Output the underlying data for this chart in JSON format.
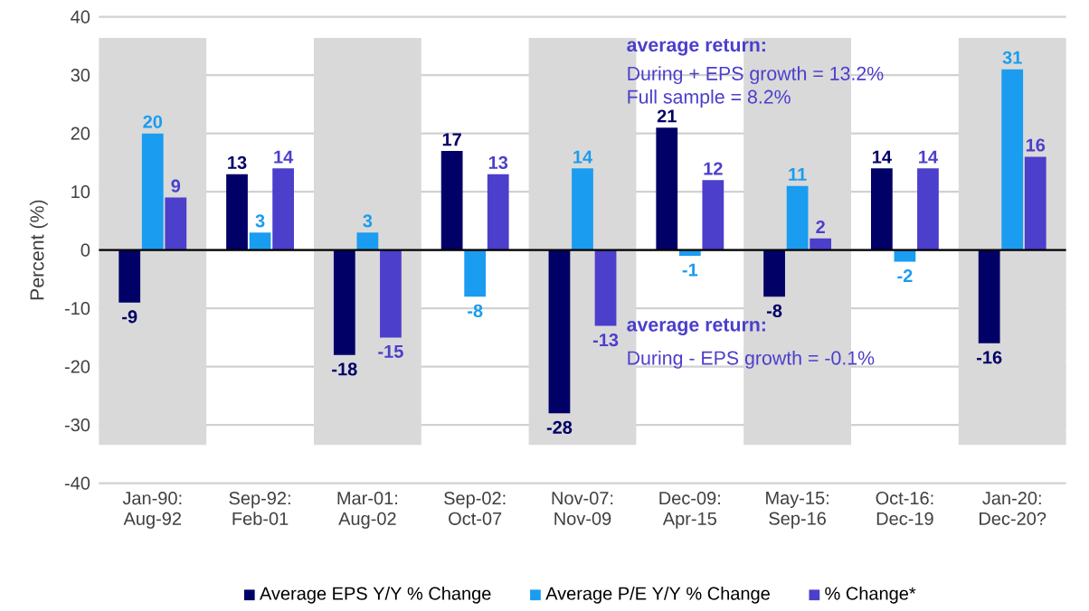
{
  "chart_data": {
    "type": "bar",
    "ylabel": "Percent (%)",
    "categories": [
      "Jan-90: Aug-92",
      "Sep-92: Feb-01",
      "Mar-01: Aug-02",
      "Sep-02: Oct-07",
      "Nov-07: Nov-09",
      "Dec-09: Apr-15",
      "May-15: Sep-16",
      "Oct-16: Dec-19",
      "Jan-20: Dec-20?"
    ],
    "series": [
      {
        "name": "Average EPS Y/Y % Change",
        "color": "#000066",
        "values": [
          -9,
          13,
          -18,
          17,
          -28,
          21,
          -8,
          14,
          -16
        ]
      },
      {
        "name": "Average P/E Y/Y % Change",
        "color": "#1a9cf0",
        "values": [
          20,
          3,
          3,
          -8,
          14,
          -1,
          11,
          -2,
          31
        ]
      },
      {
        "name": "% Change*",
        "color": "#4b3fcc",
        "values": [
          9,
          14,
          -15,
          13,
          -13,
          12,
          2,
          14,
          16
        ]
      }
    ],
    "ylim": [
      -40,
      40
    ],
    "yticks": [
      -40,
      -30,
      -20,
      -10,
      0,
      10,
      20,
      30,
      40
    ],
    "grid": "y",
    "legend": "bottom",
    "data_labels": true,
    "bands": [
      {
        "axis": "x",
        "from": "Jan-90: Aug-92",
        "to": "Jan-90: Aug-92",
        "color": "#d9d9d9"
      },
      {
        "axis": "x",
        "from": "Mar-01: Aug-02",
        "to": "Mar-01: Aug-02",
        "color": "#d9d9d9"
      },
      {
        "axis": "x",
        "from": "Nov-07: Nov-09",
        "to": "Nov-07: Nov-09",
        "color": "#d9d9d9"
      },
      {
        "axis": "x",
        "from": "May-15: Sep-16",
        "to": "May-15: Sep-16",
        "color": "#d9d9d9"
      },
      {
        "axis": "x",
        "from": "Jan-20: Dec-20?",
        "to": "Jan-20: Dec-20?",
        "color": "#d9d9d9"
      }
    ],
    "annotations": [
      "**average return:**",
      "During + EPS growth = 13.2%",
      "Full sample = 8.2%",
      "**average return:**",
      "During - EPS growth = -0.1%"
    ]
  }
}
